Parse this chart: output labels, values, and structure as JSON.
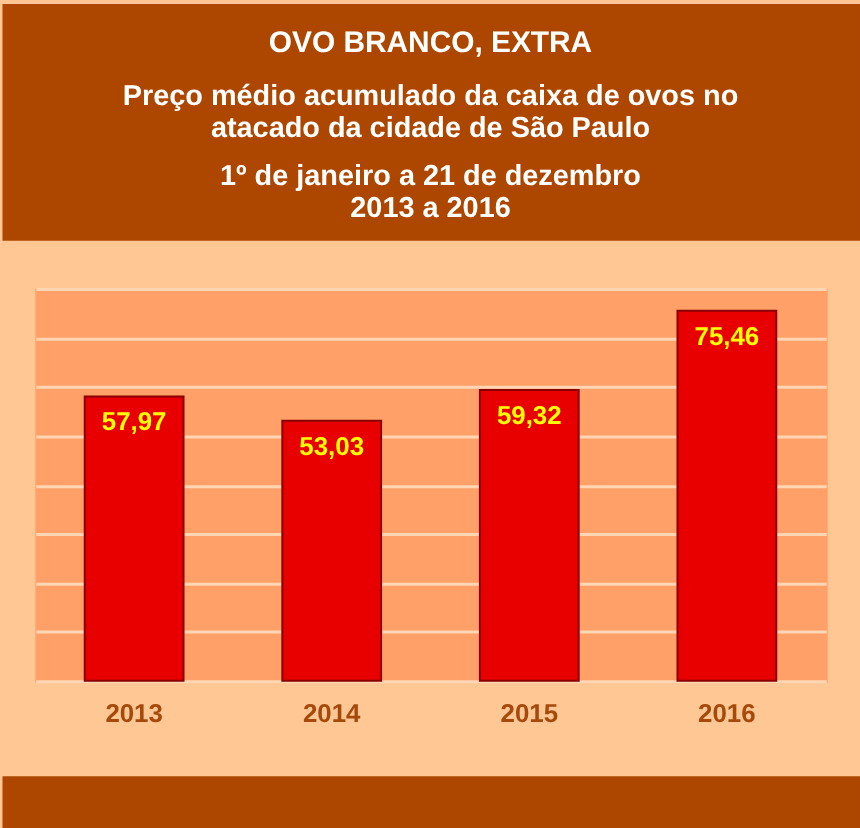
{
  "chart_data": {
    "type": "bar",
    "title": "OVO BRANCO, EXTRA",
    "subtitle": "Preço médio acumulado da caixa de ovos no\natacado da cidade de São Paulo\n\n1º de janeiro a 21 de dezembro\n2013 a 2016",
    "categories": [
      "2013",
      "2014",
      "2015",
      "2016"
    ],
    "values": [
      57.97,
      53.03,
      59.32,
      75.46
    ],
    "value_labels": [
      "57,97",
      "53,03",
      "59,32",
      "75,46"
    ],
    "color": "#e80000",
    "ylim": [
      0,
      80
    ],
    "yticks": [
      {
        "value": 0,
        "label": null
      },
      {
        "value": 10,
        "label": null
      },
      {
        "value": 20,
        "label": null
      },
      {
        "value": 30,
        "label": null
      },
      {
        "value": 40,
        "label": null
      },
      {
        "value": 50,
        "label": null
      },
      {
        "value": 60,
        "label": null
      },
      {
        "value": 70,
        "label": null
      },
      {
        "value": 80,
        "label": null
      }
    ],
    "grid": "y",
    "tick_labels": "x"
  }
}
